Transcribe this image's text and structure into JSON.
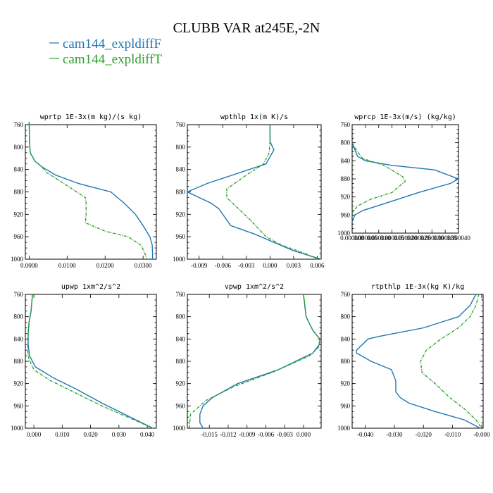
{
  "figure": {
    "title": "CLUBB VAR at245E,-2N",
    "legend": [
      {
        "label": "cam144_expldiffF",
        "color": "#1f77b4"
      },
      {
        "label": "cam144_expldiffT",
        "color": "#2ca02c"
      }
    ]
  },
  "chart_data": [
    {
      "type": "line",
      "title": "wprtp   1E-3x(m kg)/(s kg)",
      "xlim": [
        -0.001,
        0.0335
      ],
      "ylim": [
        760,
        1000
      ],
      "y_inverted": true,
      "xticks": [
        0.0,
        0.01,
        0.02,
        0.03
      ],
      "xticklabels": [
        "0.0000",
        "0.0100",
        "0.0200",
        "0.0300"
      ],
      "yticks": [
        760,
        800,
        840,
        880,
        920,
        960,
        1000
      ],
      "series": [
        {
          "name": "cam144_expldiffF",
          "color": "#1f77b4",
          "dashed": false,
          "points": [
            [
              0.0,
              755
            ],
            [
              0.0001,
              790
            ],
            [
              0.0003,
              810
            ],
            [
              0.0015,
              825
            ],
            [
              0.0033,
              835
            ],
            [
              0.007,
              850
            ],
            [
              0.013,
              865
            ],
            [
              0.0215,
              880
            ],
            [
              0.025,
              900
            ],
            [
              0.028,
              920
            ],
            [
              0.03,
              940
            ],
            [
              0.0318,
              960
            ],
            [
              0.0324,
              975
            ],
            [
              0.0325,
              990
            ],
            [
              0.0325,
              1000
            ]
          ]
        },
        {
          "name": "cam144_expldiffT",
          "color": "#2ca02c",
          "dashed": true,
          "points": [
            [
              0.0,
              755
            ],
            [
              0.0001,
              790
            ],
            [
              0.0003,
              810
            ],
            [
              0.0015,
              825
            ],
            [
              0.0033,
              835
            ],
            [
              0.0045,
              845
            ],
            [
              0.008,
              860
            ],
            [
              0.0125,
              880
            ],
            [
              0.0148,
              890
            ],
            [
              0.015,
              900
            ],
            [
              0.015,
              920
            ],
            [
              0.0148,
              935
            ],
            [
              0.02,
              950
            ],
            [
              0.026,
              960
            ],
            [
              0.0295,
              975
            ],
            [
              0.0305,
              990
            ],
            [
              0.031,
              1000
            ]
          ]
        }
      ]
    },
    {
      "type": "line",
      "title": "wpthlp   1x(m K)/s",
      "xlim": [
        -0.0105,
        0.0065
      ],
      "ylim": [
        760,
        1000
      ],
      "y_inverted": true,
      "xticks": [
        -0.009,
        -0.006,
        -0.003,
        0.0,
        0.003,
        0.006
      ],
      "xticklabels": [
        "-0.009",
        "-0.006",
        "-0.003",
        "0.000",
        "0.003",
        "0.006"
      ],
      "yticks": [
        760,
        800,
        840,
        880,
        920,
        960,
        1000
      ],
      "series": [
        {
          "name": "cam144_expldiffF",
          "color": "#1f77b4",
          "dashed": false,
          "points": [
            [
              0.0,
              760
            ],
            [
              0.0,
              790
            ],
            [
              0.0005,
              805
            ],
            [
              -0.0005,
              830
            ],
            [
              -0.008,
              865
            ],
            [
              -0.0105,
              880
            ],
            [
              -0.0075,
              900
            ],
            [
              -0.0065,
              910
            ],
            [
              -0.006,
              920
            ],
            [
              -0.005,
              940
            ],
            [
              -0.002,
              955
            ],
            [
              0.0005,
              970
            ],
            [
              0.003,
              985
            ],
            [
              0.0065,
              1000
            ]
          ]
        },
        {
          "name": "cam144_expldiffT",
          "color": "#2ca02c",
          "dashed": true,
          "points": [
            [
              0.0,
              760
            ],
            [
              0.0,
              790
            ],
            [
              -0.0001,
              810
            ],
            [
              -0.0008,
              830
            ],
            [
              -0.003,
              850
            ],
            [
              -0.0055,
              875
            ],
            [
              -0.0055,
              890
            ],
            [
              -0.004,
              910
            ],
            [
              -0.0025,
              930
            ],
            [
              -0.0005,
              960
            ],
            [
              0.0015,
              975
            ],
            [
              0.0045,
              990
            ],
            [
              0.006,
              1000
            ]
          ]
        }
      ]
    },
    {
      "type": "line",
      "title": "wprcp   1E-3x(m/s) (kg/kg)",
      "xlim": [
        0.0,
        4e-05
      ],
      "ylim": [
        760,
        1000
      ],
      "y_inverted": true,
      "xticks": [
        0.0,
        5e-06,
        1e-05,
        1.5e-05,
        2e-05,
        2.5e-05,
        3e-05,
        3.5e-05,
        4e-05
      ],
      "xticklabels": [
        "0.000000",
        "0.000005",
        "0.000010",
        "0.000015",
        "0.000020",
        "0.000025",
        "0.000030",
        "0.000035",
        "0.000040"
      ],
      "yticks": [
        760,
        800,
        840,
        880,
        920,
        960,
        1000
      ],
      "series": [
        {
          "name": "cam144_expldiffF",
          "color": "#1f77b4",
          "dashed": false,
          "points": [
            [
              0.0,
              800
            ],
            [
              2e-06,
              830
            ],
            [
              5e-06,
              840
            ],
            [
              1.5e-05,
              850
            ],
            [
              3.1e-05,
              860
            ],
            [
              4e-05,
              880
            ],
            [
              3.7e-05,
              890
            ],
            [
              2.5e-05,
              910
            ],
            [
              1.2e-05,
              935
            ],
            [
              4e-06,
              950
            ],
            [
              1e-06,
              960
            ],
            [
              0.0,
              975
            ]
          ]
        },
        {
          "name": "cam144_expldiffT",
          "color": "#2ca02c",
          "dashed": true,
          "points": [
            [
              0.0,
              800
            ],
            [
              2e-06,
              820
            ],
            [
              4e-06,
              835
            ],
            [
              1.2e-05,
              850
            ],
            [
              1.9e-05,
              875
            ],
            [
              2e-05,
              885
            ],
            [
              1.5e-05,
              910
            ],
            [
              7e-06,
              925
            ],
            [
              2e-06,
              940
            ],
            [
              0.0,
              955
            ]
          ]
        }
      ]
    },
    {
      "type": "line",
      "title": "upwp   1xm^2/s^2",
      "xlim": [
        -0.003,
        0.0432
      ],
      "ylim": [
        760,
        1000
      ],
      "y_inverted": true,
      "xticks": [
        0.0,
        0.01,
        0.02,
        0.03,
        0.04
      ],
      "xticklabels": [
        "0.000",
        "0.010",
        "0.020",
        "0.030",
        "0.040"
      ],
      "yticks": [
        760,
        800,
        840,
        880,
        920,
        960,
        1000
      ],
      "series": [
        {
          "name": "cam144_expldiffF",
          "color": "#1f77b4",
          "dashed": false,
          "points": [
            [
              -0.0005,
              760
            ],
            [
              -0.001,
              790
            ],
            [
              -0.0017,
              810
            ],
            [
              -0.002,
              830
            ],
            [
              -0.002,
              850
            ],
            [
              -0.0015,
              870
            ],
            [
              0.0005,
              890
            ],
            [
              0.007,
              910
            ],
            [
              0.015,
              930
            ],
            [
              0.024,
              955
            ],
            [
              0.034,
              980
            ],
            [
              0.042,
              1000
            ]
          ]
        },
        {
          "name": "cam144_expldiffT",
          "color": "#2ca02c",
          "dashed": true,
          "points": [
            [
              -0.0005,
              760
            ],
            [
              -0.001,
              790
            ],
            [
              -0.0017,
              810
            ],
            [
              -0.002,
              830
            ],
            [
              -0.0022,
              860
            ],
            [
              -0.0018,
              875
            ],
            [
              0.0,
              895
            ],
            [
              0.006,
              915
            ],
            [
              0.014,
              935
            ],
            [
              0.024,
              960
            ],
            [
              0.034,
              982
            ],
            [
              0.042,
              1000
            ]
          ]
        }
      ]
    },
    {
      "type": "line",
      "title": "vpwp   1xm^2/s^2",
      "xlim": [
        -0.0185,
        0.0028
      ],
      "ylim": [
        760,
        1000
      ],
      "y_inverted": true,
      "xticks": [
        -0.015,
        -0.012,
        -0.009,
        -0.006,
        -0.003,
        0.0
      ],
      "xticklabels": [
        "-0.015",
        "-0.012",
        "-0.009",
        "-0.006",
        "-0.003",
        "0.000"
      ],
      "yticks": [
        760,
        800,
        840,
        880,
        920,
        960,
        1000
      ],
      "series": [
        {
          "name": "cam144_expldiffF",
          "color": "#1f77b4",
          "dashed": false,
          "points": [
            [
              0.0,
              760
            ],
            [
              0.0004,
              800
            ],
            [
              0.0015,
              825
            ],
            [
              0.0026,
              840
            ],
            [
              0.0025,
              850
            ],
            [
              0.0015,
              865
            ],
            [
              -0.004,
              895
            ],
            [
              -0.0105,
              920
            ],
            [
              -0.0145,
              945
            ],
            [
              -0.016,
              960
            ],
            [
              -0.0165,
              975
            ],
            [
              -0.0165,
              990
            ],
            [
              -0.016,
              1000
            ]
          ]
        },
        {
          "name": "cam144_expldiffT",
          "color": "#2ca02c",
          "dashed": true,
          "points": [
            [
              0.0,
              760
            ],
            [
              0.0004,
              800
            ],
            [
              0.0015,
              825
            ],
            [
              0.0026,
              840
            ],
            [
              0.0024,
              855
            ],
            [
              0.001,
              870
            ],
            [
              -0.005,
              900
            ],
            [
              -0.011,
              925
            ],
            [
              -0.0155,
              950
            ],
            [
              -0.018,
              975
            ],
            [
              -0.0182,
              1000
            ]
          ]
        }
      ]
    },
    {
      "type": "line",
      "title": "rtpthlp   1E-3x(kg K)/kg",
      "xlim": [
        -0.0445,
        0.0005
      ],
      "ylim": [
        760,
        1000
      ],
      "y_inverted": true,
      "xticks": [
        -0.04,
        -0.03,
        -0.02,
        -0.01,
        0.0
      ],
      "xticklabels": [
        "-0.040",
        "-0.030",
        "-0.020",
        "-0.010",
        "-0.000"
      ],
      "yticks": [
        760,
        800,
        840,
        880,
        920,
        960,
        1000
      ],
      "series": [
        {
          "name": "cam144_expldiffF",
          "color": "#1f77b4",
          "dashed": false,
          "points": [
            [
              -0.002,
              760
            ],
            [
              -0.004,
              780
            ],
            [
              -0.008,
              800
            ],
            [
              -0.02,
              820
            ],
            [
              -0.035,
              835
            ],
            [
              -0.039,
              840
            ],
            [
              -0.043,
              860
            ],
            [
              -0.043,
              865
            ],
            [
              -0.038,
              880
            ],
            [
              -0.031,
              895
            ],
            [
              -0.0295,
              915
            ],
            [
              -0.0295,
              935
            ],
            [
              -0.028,
              945
            ],
            [
              -0.025,
              955
            ],
            [
              -0.016,
              970
            ],
            [
              -0.006,
              985
            ],
            [
              -0.0005,
              1000
            ]
          ]
        },
        {
          "name": "cam144_expldiffT",
          "color": "#2ca02c",
          "dashed": true,
          "points": [
            [
              -0.001,
              760
            ],
            [
              -0.002,
              780
            ],
            [
              -0.004,
              800
            ],
            [
              -0.008,
              820
            ],
            [
              -0.014,
              840
            ],
            [
              -0.019,
              860
            ],
            [
              -0.021,
              880
            ],
            [
              -0.0205,
              900
            ],
            [
              -0.016,
              920
            ],
            [
              -0.011,
              945
            ],
            [
              -0.006,
              965
            ],
            [
              -0.002,
              985
            ],
            [
              0.0,
              1000
            ]
          ]
        }
      ]
    }
  ]
}
